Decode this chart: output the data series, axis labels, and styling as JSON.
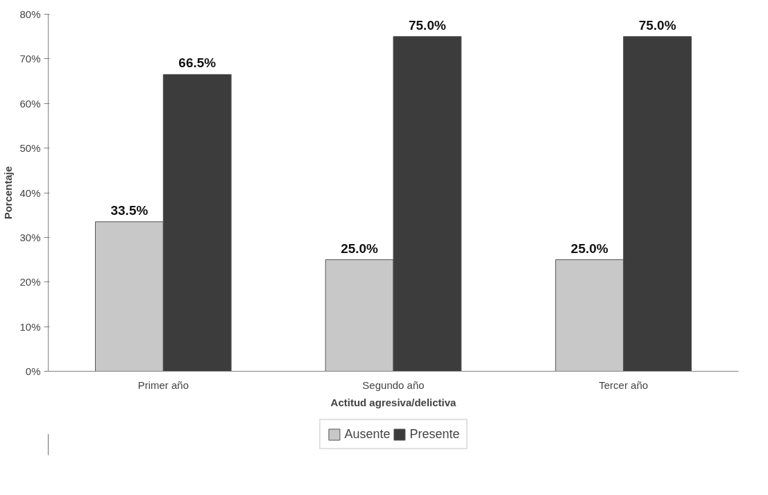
{
  "chart_data": {
    "type": "bar",
    "xlabel": "Actitud agresiva/delictiva",
    "ylabel": "Porcentaje",
    "categories": [
      "Primer año",
      "Segundo año",
      "Tercer año"
    ],
    "series": [
      {
        "name": "Ausente",
        "color": "#c8c8c8",
        "values": [
          33.5,
          25.0,
          25.0
        ],
        "value_labels": [
          "33.5%",
          "25.0%",
          "25.0%"
        ]
      },
      {
        "name": "Presente",
        "color": "#3c3c3c",
        "values": [
          66.5,
          75.0,
          75.0
        ],
        "value_labels": [
          "66.5%",
          "75.0%",
          "75.0%"
        ]
      }
    ],
    "ylim": [
      0,
      80
    ],
    "yticks": [
      {
        "value": 0,
        "label": "0%"
      },
      {
        "value": 10,
        "label": "10%"
      },
      {
        "value": 20,
        "label": "20%"
      },
      {
        "value": 30,
        "label": "30%"
      },
      {
        "value": 40,
        "label": "40%"
      },
      {
        "value": 50,
        "label": "50%"
      },
      {
        "value": 60,
        "label": "60%"
      },
      {
        "value": 70,
        "label": "70%"
      },
      {
        "value": 80,
        "label": "80%"
      }
    ],
    "grid": false,
    "legend": "bottom"
  }
}
